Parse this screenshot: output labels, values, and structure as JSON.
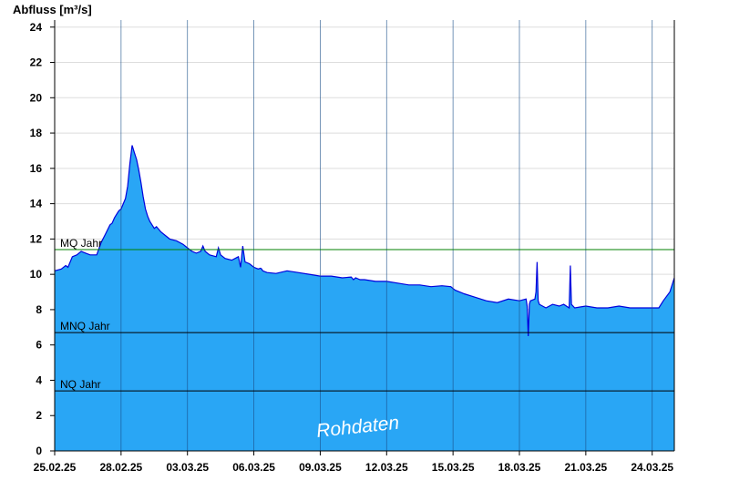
{
  "chart_data": {
    "type": "area",
    "ylabel": "Abfluss [m³/s]",
    "ylim": [
      0,
      24.4
    ],
    "yticks": [
      0,
      2,
      4,
      6,
      8,
      10,
      12,
      14,
      16,
      18,
      20,
      22,
      24
    ],
    "x_start": "25.02.25",
    "x_end": "24.03.25",
    "xtick_labels": [
      "25.02.25",
      "28.02.25",
      "03.03.25",
      "06.03.25",
      "09.03.25",
      "12.03.25",
      "15.03.25",
      "18.03.25",
      "21.03.25",
      "24.03.25"
    ],
    "xtick_day_offsets": [
      0,
      3,
      6,
      9,
      12,
      15,
      18,
      21,
      24,
      27
    ],
    "grid": true,
    "series": [
      {
        "values_day_offset": [
          0,
          0.3,
          0.5,
          0.6,
          0.8,
          1.0,
          1.2,
          1.4,
          1.6,
          1.9,
          2.1,
          2.3,
          2.5,
          2.6,
          2.7,
          2.8,
          2.9,
          3.0,
          3.1,
          3.2,
          3.3,
          3.4,
          3.5,
          3.6,
          3.7,
          3.8,
          3.9,
          4.0,
          4.1,
          4.2,
          4.3,
          4.4,
          4.5,
          4.6,
          4.8,
          5.0,
          5.2,
          5.5,
          5.8,
          6.0,
          6.2,
          6.4,
          6.6,
          6.7,
          6.8,
          7.0,
          7.3,
          7.4,
          7.5,
          7.7,
          8.0,
          8.3,
          8.4,
          8.5,
          8.6,
          8.8,
          9.0,
          9.2,
          9.3,
          9.35,
          9.4,
          9.6,
          10.0,
          10.5,
          11.0,
          11.5,
          12.0,
          12.5,
          13.0,
          13.4,
          13.5,
          13.6,
          13.7,
          13.8,
          14.0,
          14.5,
          15.0,
          15.5,
          16.0,
          16.5,
          17.0,
          17.5,
          17.9,
          18.0,
          18.1,
          18.5,
          19.0,
          19.5,
          20.0,
          20.5,
          21.0,
          21.3,
          21.35,
          21.4,
          21.45,
          21.5,
          21.7,
          21.75,
          21.8,
          21.85,
          21.9,
          22.2,
          22.5,
          22.8,
          23.0,
          23.25,
          23.3,
          23.35,
          23.5,
          24.0,
          24.5,
          25.0,
          25.5,
          26.0,
          26.5,
          27.0,
          27.3,
          27.5,
          27.8,
          28.0
        ],
        "values": [
          10.2,
          10.3,
          10.5,
          10.4,
          11.0,
          11.1,
          11.3,
          11.2,
          11.1,
          11.1,
          11.8,
          12.3,
          12.8,
          12.9,
          13.2,
          13.4,
          13.6,
          13.7,
          14.0,
          14.3,
          15.0,
          16.3,
          17.3,
          16.9,
          16.5,
          15.9,
          15.2,
          14.4,
          13.7,
          13.3,
          13.0,
          12.8,
          12.6,
          12.7,
          12.4,
          12.2,
          12.0,
          11.9,
          11.7,
          11.5,
          11.3,
          11.2,
          11.3,
          11.6,
          11.3,
          11.1,
          11.0,
          11.5,
          11.1,
          10.9,
          10.8,
          11.0,
          10.4,
          11.6,
          10.7,
          10.6,
          10.4,
          10.3,
          10.35,
          10.3,
          10.2,
          10.1,
          10.05,
          10.2,
          10.1,
          10.0,
          9.9,
          9.9,
          9.8,
          9.85,
          9.7,
          9.8,
          9.75,
          9.7,
          9.7,
          9.6,
          9.6,
          9.5,
          9.4,
          9.4,
          9.3,
          9.35,
          9.3,
          9.2,
          9.1,
          8.9,
          8.7,
          8.5,
          8.4,
          8.6,
          8.5,
          8.6,
          8.2,
          6.5,
          8.3,
          8.5,
          8.6,
          9.0,
          10.7,
          8.5,
          8.3,
          8.1,
          8.3,
          8.2,
          8.3,
          8.1,
          10.5,
          8.3,
          8.1,
          8.2,
          8.1,
          8.1,
          8.2,
          8.1,
          8.1,
          8.1,
          8.1,
          8.5,
          9.0,
          9.8
        ]
      }
    ],
    "reference_lines": [
      {
        "label": "MQ Jahr",
        "value": 11.4,
        "color": "#008000"
      },
      {
        "label": "MNQ Jahr",
        "value": 6.7,
        "color": "#000000"
      },
      {
        "label": "NQ Jahr",
        "value": 3.4,
        "color": "#000000"
      }
    ],
    "watermark": "Rohdaten",
    "colors": {
      "fill": "#29a6f5",
      "line": "#0000dd",
      "grid": "#dddddd"
    }
  }
}
